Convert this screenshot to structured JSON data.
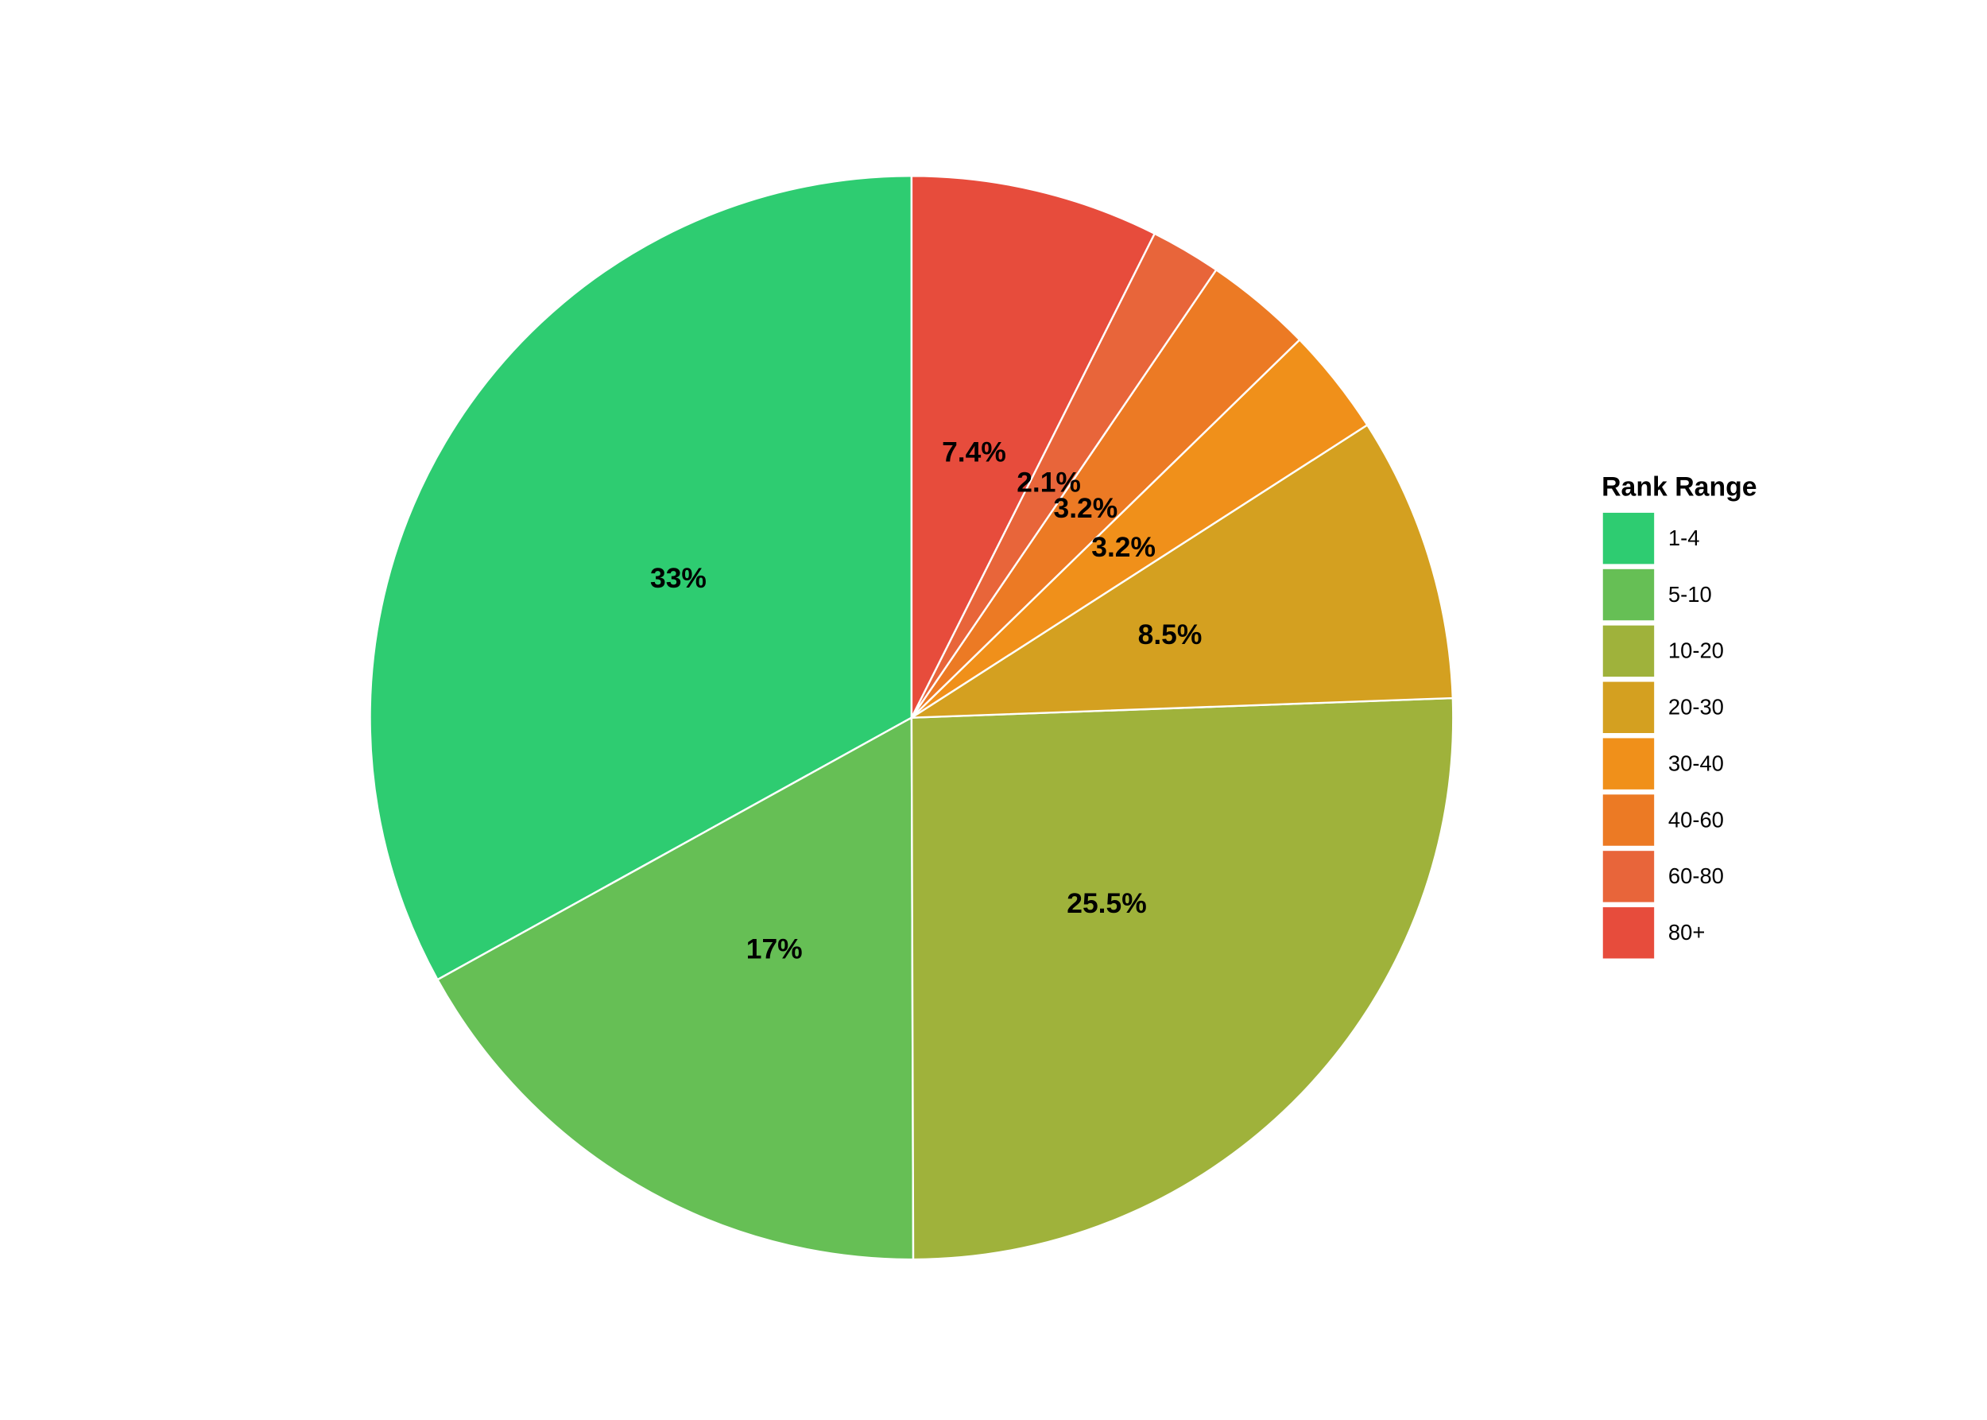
{
  "chart_data": {
    "type": "pie",
    "legend_title": "Rank Range",
    "categories": [
      "1-4",
      "5-10",
      "10-20",
      "20-30",
      "30-40",
      "40-60",
      "60-80",
      "80+"
    ],
    "values": [
      33,
      17,
      25.5,
      8.5,
      3.2,
      3.2,
      2.1,
      7.4
    ],
    "value_labels": [
      "33%",
      "17%",
      "25.5%",
      "8.5%",
      "3.2%",
      "3.2%",
      "2.1%",
      "7.4%"
    ],
    "colors": [
      "#2ecc71",
      "#66bf55",
      "#9fb23b",
      "#d4a020",
      "#f0901a",
      "#ec7a24",
      "#e8653a",
      "#e74c3c"
    ],
    "legend": "right"
  }
}
